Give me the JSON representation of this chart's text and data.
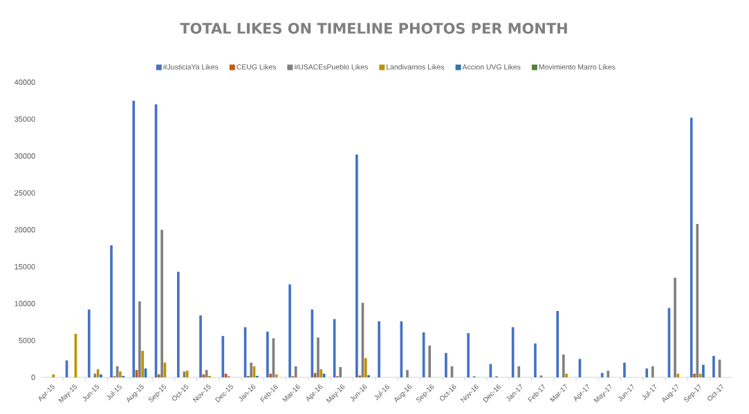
{
  "chart_data": {
    "type": "bar",
    "title": "TOTAL LIKES ON TIMELINE PHOTOS PER MONTH",
    "categories": [
      "Apr-15",
      "May-15",
      "Jun-15",
      "Jul-15",
      "Aug-15",
      "Sep-15",
      "Oct-15",
      "Nov-15",
      "Dec-15",
      "Jan-16",
      "Feb-16",
      "Mar-16",
      "Apr-16",
      "May-16",
      "Jun-16",
      "Jul-16",
      "Aug-16",
      "Sep-16",
      "Oct-16",
      "Nov-16",
      "Dec-16",
      "Jan-17",
      "Feb-17",
      "Mar-17",
      "Apr-17",
      "May-17",
      "Jun-17",
      "Jul-17",
      "Aug-17",
      "Sep-17",
      "Oct-17"
    ],
    "series": [
      {
        "name": "#JusticiaYa Likes",
        "color": "#4472c4",
        "values": [
          0,
          2300,
          9200,
          17900,
          37500,
          37000,
          14300,
          8400,
          5600,
          6800,
          6200,
          12600,
          9200,
          7900,
          30200,
          7600,
          7600,
          6100,
          3300,
          6000,
          1800,
          6800,
          4600,
          9000,
          2500,
          600,
          2000,
          1200,
          9400,
          35200,
          2900
        ]
      },
      {
        "name": "CEUG Likes",
        "color": "#c55a11",
        "values": [
          0,
          0,
          0,
          150,
          1000,
          400,
          0,
          400,
          500,
          200,
          500,
          150,
          600,
          150,
          250,
          0,
          0,
          0,
          0,
          0,
          0,
          0,
          0,
          0,
          0,
          0,
          0,
          0,
          0,
          500,
          0
        ]
      },
      {
        "name": "#USACEsPueblo Likes",
        "color": "#7f7f7f",
        "values": [
          0,
          0,
          500,
          1500,
          10300,
          20000,
          800,
          1000,
          150,
          2000,
          5300,
          1500,
          5400,
          1400,
          10100,
          0,
          1000,
          4300,
          1500,
          150,
          150,
          1500,
          250,
          3100,
          0,
          900,
          0,
          1500,
          13500,
          20800,
          2400
        ]
      },
      {
        "name": "Landivarnos Likes",
        "color": "#bf9000",
        "values": [
          400,
          5900,
          1100,
          800,
          3600,
          2000,
          900,
          200,
          0,
          1500,
          400,
          0,
          1100,
          0,
          2600,
          0,
          0,
          0,
          0,
          0,
          0,
          0,
          0,
          500,
          0,
          0,
          0,
          0,
          500,
          500,
          0
        ]
      },
      {
        "name": "Accion UVG Likes",
        "color": "#2e75b6",
        "values": [
          0,
          0,
          400,
          200,
          1200,
          0,
          0,
          0,
          0,
          200,
          0,
          0,
          500,
          0,
          300,
          0,
          0,
          0,
          0,
          0,
          0,
          0,
          0,
          0,
          0,
          0,
          0,
          0,
          0,
          1700,
          0
        ]
      },
      {
        "name": "Movimiento Marro Likes",
        "color": "#548235",
        "values": [
          0,
          0,
          0,
          0,
          0,
          0,
          0,
          0,
          0,
          0,
          0,
          0,
          0,
          0,
          0,
          0,
          0,
          0,
          0,
          0,
          0,
          0,
          0,
          0,
          0,
          0,
          0,
          0,
          0,
          0,
          0
        ]
      }
    ],
    "ylim": [
      0,
      40000
    ],
    "yticks": [
      0,
      5000,
      10000,
      15000,
      20000,
      25000,
      30000,
      35000,
      40000
    ],
    "grid": false,
    "legend": "top"
  }
}
